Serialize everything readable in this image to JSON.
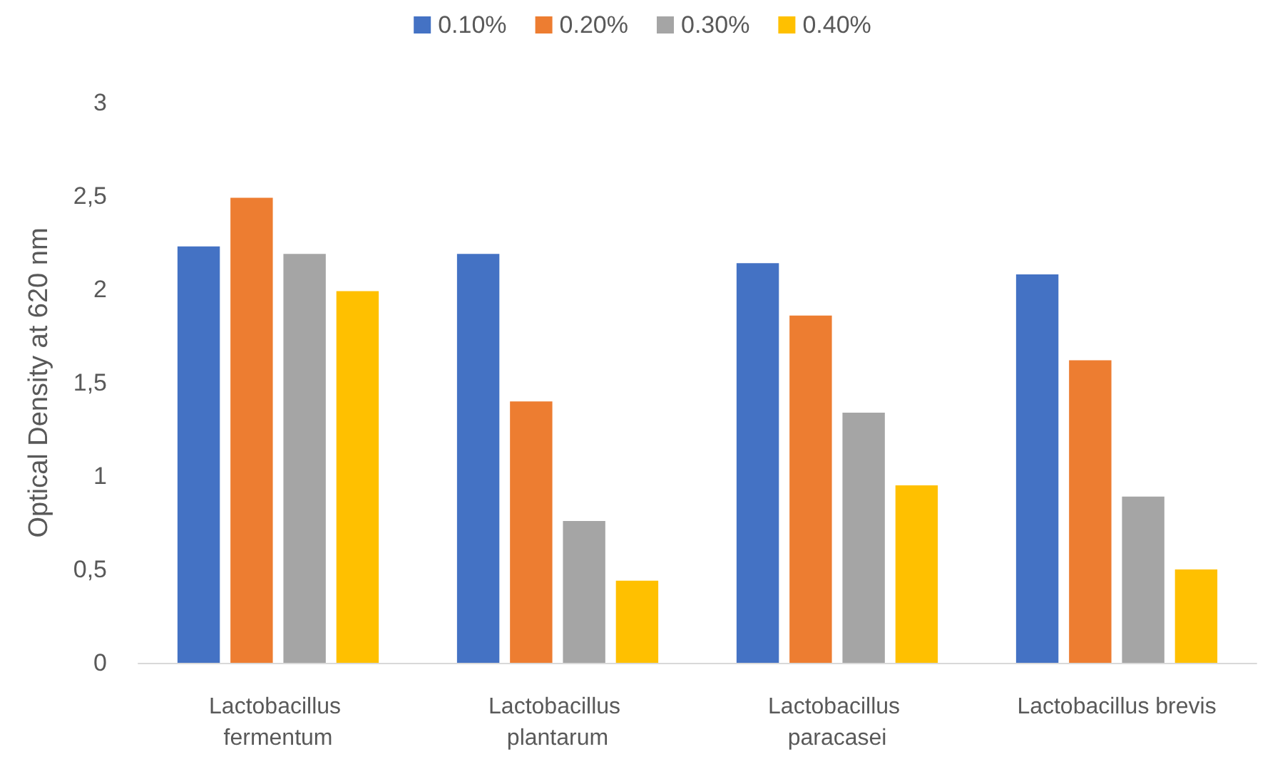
{
  "chart_data": {
    "type": "bar",
    "ylabel": "Optical Density at 620 nm",
    "categories": [
      "Lactobacillus fermentum",
      "Lactobacillus plantarum",
      "Lactobacillus paracasei",
      "Lactobacillus brevis"
    ],
    "series": [
      {
        "name": "0.10%",
        "color": "#4472c4",
        "values": [
          2.23,
          2.19,
          2.14,
          2.08
        ]
      },
      {
        "name": "0.20%",
        "color": "#ed7d31",
        "values": [
          2.49,
          1.4,
          1.86,
          1.62
        ]
      },
      {
        "name": "0.30%",
        "color": "#a5a5a5",
        "values": [
          2.19,
          0.76,
          1.34,
          0.89
        ]
      },
      {
        "name": "0.40%",
        "color": "#ffc000",
        "values": [
          1.99,
          0.44,
          0.95,
          0.5
        ]
      }
    ],
    "ylim": [
      0,
      3
    ],
    "yticks": [
      {
        "value": 0,
        "label": "0"
      },
      {
        "value": 0.5,
        "label": "0,5"
      },
      {
        "value": 1,
        "label": "1"
      },
      {
        "value": 1.5,
        "label": "1,5"
      },
      {
        "value": 2,
        "label": "2"
      },
      {
        "value": 2.5,
        "label": "2,5"
      },
      {
        "value": 3,
        "label": "3"
      }
    ],
    "grid": false,
    "legend": "top"
  }
}
